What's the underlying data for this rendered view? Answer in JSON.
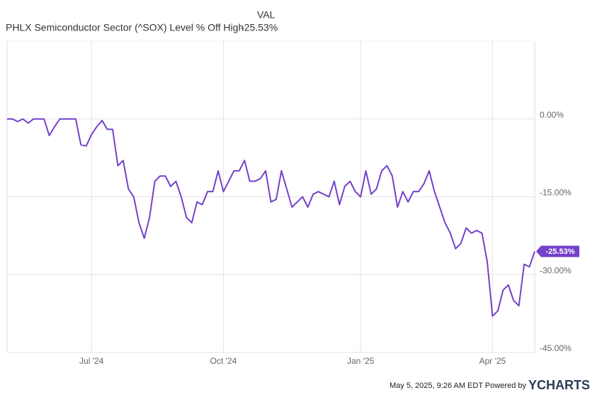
{
  "chart_data": {
    "type": "line",
    "title": "PHLX Semiconductor Sector (^SOX) Level % Off High",
    "value_header": "VAL",
    "categories": [
      null,
      null,
      null,
      null,
      null,
      null,
      null,
      null,
      null,
      null,
      null,
      null,
      null,
      null,
      null,
      null,
      "Jul '24",
      null,
      null,
      null,
      null,
      null,
      null,
      null,
      null,
      null,
      null,
      null,
      null,
      null,
      null,
      null,
      null,
      null,
      null,
      null,
      null,
      null,
      null,
      null,
      null,
      "Oct '24",
      null,
      null,
      null,
      null,
      null,
      null,
      null,
      null,
      null,
      null,
      null,
      null,
      null,
      null,
      null,
      null,
      null,
      null,
      null,
      null,
      null,
      null,
      null,
      null,
      null,
      "Jan '25",
      null,
      null,
      null,
      null,
      null,
      null,
      null,
      null,
      null,
      null,
      null,
      null,
      null,
      null,
      null,
      null,
      null,
      null,
      null,
      null,
      null,
      null,
      null,
      null,
      "Apr '25",
      null,
      null,
      null,
      null,
      null,
      null,
      null,
      null
    ],
    "series": [
      {
        "name": "PHLX Semiconductor Sector (^SOX) Level % Off High",
        "color": "#7441c9",
        "values": [
          0,
          0,
          -0.5,
          0,
          -0.8,
          0,
          0,
          0,
          -3.2,
          -1.5,
          0,
          0,
          0,
          0,
          -5,
          -5.2,
          -3,
          -1.5,
          -0.3,
          -2,
          -2,
          -9,
          -8,
          -13.5,
          -15,
          -20,
          -23,
          -19,
          -12,
          -11,
          -11,
          -13,
          -12,
          -15,
          -19,
          -20,
          -16,
          -16.5,
          -14,
          -14,
          -10,
          -14,
          -12,
          -10,
          -10,
          -8,
          -12,
          -12,
          -11.5,
          -10,
          -16,
          -15.5,
          -10,
          -13.5,
          -17,
          -16,
          -15,
          -17,
          -14.5,
          -14,
          -14.5,
          -15,
          -12,
          -16.5,
          -13,
          -12,
          -14,
          -15,
          -10,
          -14.5,
          -13.5,
          -10,
          -9,
          -11,
          -17,
          -14,
          -16,
          -14,
          -14,
          -12.5,
          -10,
          -14,
          -17,
          -20,
          -22,
          -25,
          -24,
          -21,
          -22,
          -21.5,
          -22,
          -27.5,
          -38,
          -37,
          -33,
          -32,
          -35,
          -36,
          -28,
          -28.5,
          -25.53
        ],
        "value_labels": [
          null,
          null,
          null,
          null,
          null,
          null,
          null,
          null,
          null,
          null,
          null,
          null,
          null,
          null,
          null,
          null,
          null,
          null,
          null,
          null,
          null,
          null,
          null,
          null,
          null,
          null,
          null,
          null,
          null,
          null,
          null,
          null,
          null,
          null,
          null,
          null,
          null,
          null,
          null,
          null,
          null,
          null,
          null,
          null,
          null,
          null,
          null,
          null,
          null,
          null,
          null,
          null,
          null,
          null,
          null,
          null,
          null,
          null,
          null,
          null,
          null,
          null,
          null,
          null,
          null,
          null,
          null,
          null,
          null,
          null,
          null,
          null,
          null,
          null,
          null,
          null,
          null,
          null,
          null,
          null,
          null,
          null,
          null,
          null,
          null,
          null,
          null,
          null,
          null,
          null,
          null,
          null,
          null,
          null,
          null,
          null,
          null,
          null,
          null,
          null,
          "-25.53%"
        ]
      }
    ],
    "ylim": [
      -45,
      15
    ],
    "yticks": [
      {
        "value": -45,
        "label": "-45.00%"
      },
      {
        "value": -30,
        "label": "-30.00%"
      },
      {
        "value": -15,
        "label": "-15.00%"
      },
      {
        "value": 0,
        "label": "0.00%"
      }
    ],
    "grid": true,
    "footer": {
      "timestamp": "May 5, 2025, 9:26 AM EDT Powered by",
      "logo": "YCHARTS"
    }
  }
}
